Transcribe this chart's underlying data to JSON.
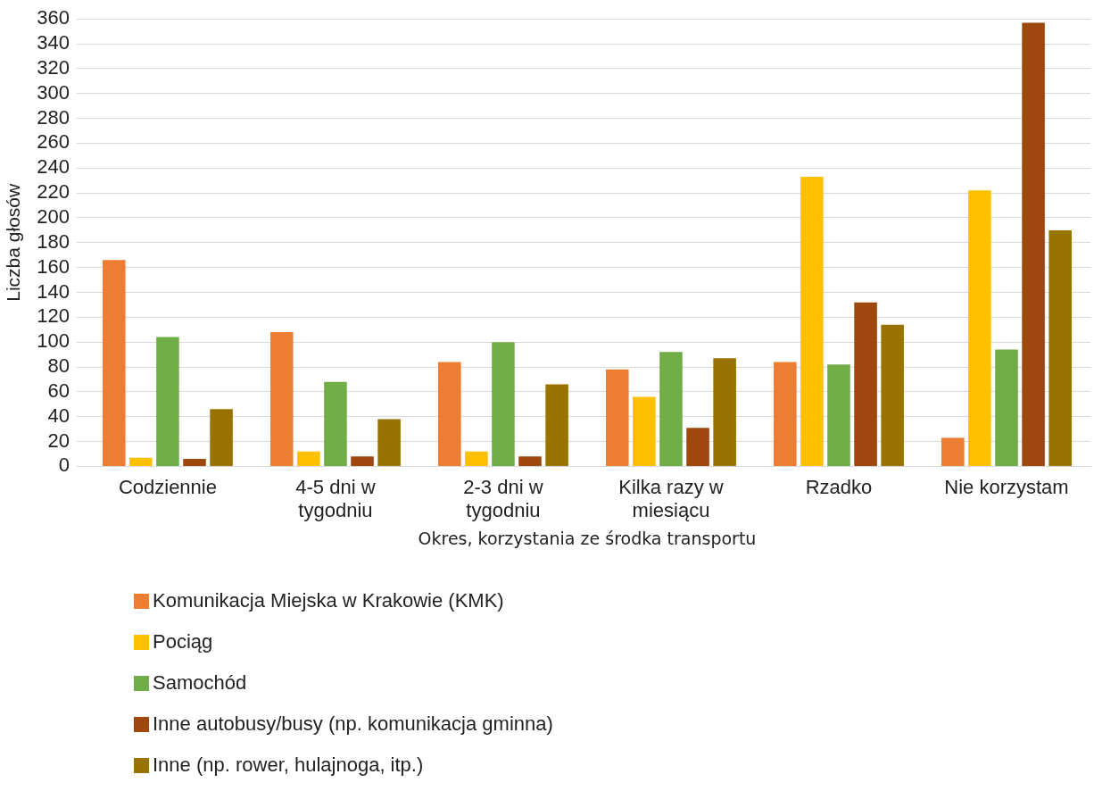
{
  "chart_data": {
    "type": "bar",
    "xlabel": "Okres, korzystania ze środka transportu",
    "ylabel": "Liczba głosów",
    "categories": [
      "Codziennie",
      "4-5 dni w tygodniu",
      "2-3 dni w tygodniu",
      "Kilka razy w miesiącu",
      "Rzadko",
      "Nie korzystam"
    ],
    "series": [
      {
        "name": "Komunikacja Miejska w Krakowie (KMK)",
        "color": "#ed7d31",
        "values": [
          166,
          108,
          84,
          78,
          84,
          23
        ]
      },
      {
        "name": "Pociąg",
        "color": "#ffc000",
        "values": [
          7,
          12,
          12,
          56,
          233,
          222
        ]
      },
      {
        "name": "Samochód",
        "color": "#70ad47",
        "values": [
          104,
          68,
          100,
          92,
          82,
          94
        ]
      },
      {
        "name": "Inne autobusy/busy (np. komunikacja gminna)",
        "color": "#9e480e",
        "values": [
          6,
          8,
          8,
          31,
          132,
          357
        ]
      },
      {
        "name": "Inne (np. rower, hulajnoga, itp.)",
        "color": "#997300",
        "values": [
          46,
          38,
          66,
          87,
          114,
          190
        ]
      }
    ],
    "ylim": [
      0,
      360
    ],
    "yticks": [
      0,
      20,
      40,
      60,
      80,
      100,
      120,
      140,
      160,
      180,
      200,
      220,
      240,
      260,
      280,
      300,
      320,
      340,
      360
    ],
    "grid": "y",
    "legend": "bottom"
  }
}
